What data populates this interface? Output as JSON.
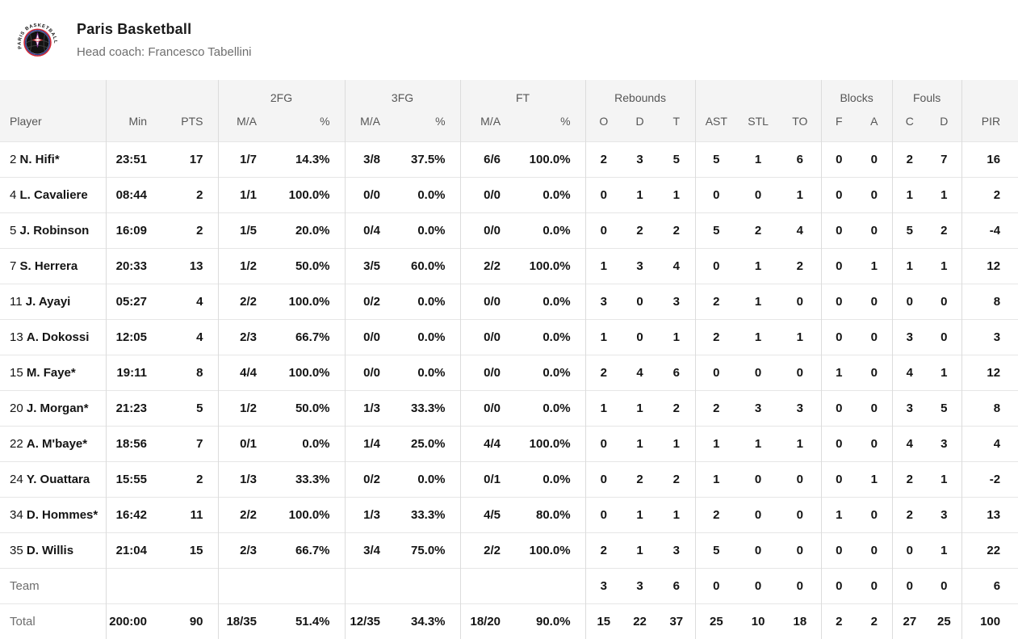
{
  "header": {
    "team_name": "Paris Basketball",
    "coach_line": "Head coach: Francesco Tabellini",
    "logo_text": "PARIS BASKETBALL"
  },
  "colors": {
    "header_bg": "#f4f4f4",
    "header_text": "#565656",
    "body_text": "#141414",
    "muted_text": "#6e6e6e",
    "border": "#dcdcdc",
    "row_border": "#e6e6e6",
    "logo_red": "#d22630",
    "logo_blue": "#2a3b8f",
    "logo_purple": "#7b2d8b",
    "logo_black": "#121212"
  },
  "table": {
    "groups": [
      {
        "label": "",
        "span": 1
      },
      {
        "label": "",
        "span": 2
      },
      {
        "label": "2FG",
        "span": 2
      },
      {
        "label": "3FG",
        "span": 2
      },
      {
        "label": "FT",
        "span": 2
      },
      {
        "label": "Rebounds",
        "span": 3
      },
      {
        "label": "",
        "span": 3
      },
      {
        "label": "Blocks",
        "span": 2
      },
      {
        "label": "Fouls",
        "span": 2
      },
      {
        "label": "",
        "span": 1
      }
    ],
    "columns": [
      "Player",
      "Min",
      "PTS",
      "M/A",
      "%",
      "M/A",
      "%",
      "M/A",
      "%",
      "O",
      "D",
      "T",
      "AST",
      "STL",
      "TO",
      "F",
      "A",
      "C",
      "D",
      "PIR"
    ],
    "players": [
      {
        "num": "2",
        "name": "N. Hifi*",
        "min": "23:51",
        "pts": "17",
        "fg2": "1/7",
        "fg2p": "14.3%",
        "fg3": "3/8",
        "fg3p": "37.5%",
        "ft": "6/6",
        "ftp": "100.0%",
        "o": "2",
        "d": "3",
        "t": "5",
        "ast": "5",
        "stl": "1",
        "to": "6",
        "bf": "0",
        "ba": "0",
        "fc": "2",
        "fd": "7",
        "pir": "16"
      },
      {
        "num": "4",
        "name": "L. Cavaliere",
        "min": "08:44",
        "pts": "2",
        "fg2": "1/1",
        "fg2p": "100.0%",
        "fg3": "0/0",
        "fg3p": "0.0%",
        "ft": "0/0",
        "ftp": "0.0%",
        "o": "0",
        "d": "1",
        "t": "1",
        "ast": "0",
        "stl": "0",
        "to": "1",
        "bf": "0",
        "ba": "0",
        "fc": "1",
        "fd": "1",
        "pir": "2"
      },
      {
        "num": "5",
        "name": "J. Robinson",
        "min": "16:09",
        "pts": "2",
        "fg2": "1/5",
        "fg2p": "20.0%",
        "fg3": "0/4",
        "fg3p": "0.0%",
        "ft": "0/0",
        "ftp": "0.0%",
        "o": "0",
        "d": "2",
        "t": "2",
        "ast": "5",
        "stl": "2",
        "to": "4",
        "bf": "0",
        "ba": "0",
        "fc": "5",
        "fd": "2",
        "pir": "-4"
      },
      {
        "num": "7",
        "name": "S. Herrera",
        "min": "20:33",
        "pts": "13",
        "fg2": "1/2",
        "fg2p": "50.0%",
        "fg3": "3/5",
        "fg3p": "60.0%",
        "ft": "2/2",
        "ftp": "100.0%",
        "o": "1",
        "d": "3",
        "t": "4",
        "ast": "0",
        "stl": "1",
        "to": "2",
        "bf": "0",
        "ba": "1",
        "fc": "1",
        "fd": "1",
        "pir": "12"
      },
      {
        "num": "11",
        "name": "J. Ayayi",
        "min": "05:27",
        "pts": "4",
        "fg2": "2/2",
        "fg2p": "100.0%",
        "fg3": "0/2",
        "fg3p": "0.0%",
        "ft": "0/0",
        "ftp": "0.0%",
        "o": "3",
        "d": "0",
        "t": "3",
        "ast": "2",
        "stl": "1",
        "to": "0",
        "bf": "0",
        "ba": "0",
        "fc": "0",
        "fd": "0",
        "pir": "8"
      },
      {
        "num": "13",
        "name": "A. Dokossi",
        "min": "12:05",
        "pts": "4",
        "fg2": "2/3",
        "fg2p": "66.7%",
        "fg3": "0/0",
        "fg3p": "0.0%",
        "ft": "0/0",
        "ftp": "0.0%",
        "o": "1",
        "d": "0",
        "t": "1",
        "ast": "2",
        "stl": "1",
        "to": "1",
        "bf": "0",
        "ba": "0",
        "fc": "3",
        "fd": "0",
        "pir": "3"
      },
      {
        "num": "15",
        "name": "M. Faye*",
        "min": "19:11",
        "pts": "8",
        "fg2": "4/4",
        "fg2p": "100.0%",
        "fg3": "0/0",
        "fg3p": "0.0%",
        "ft": "0/0",
        "ftp": "0.0%",
        "o": "2",
        "d": "4",
        "t": "6",
        "ast": "0",
        "stl": "0",
        "to": "0",
        "bf": "1",
        "ba": "0",
        "fc": "4",
        "fd": "1",
        "pir": "12"
      },
      {
        "num": "20",
        "name": "J. Morgan*",
        "min": "21:23",
        "pts": "5",
        "fg2": "1/2",
        "fg2p": "50.0%",
        "fg3": "1/3",
        "fg3p": "33.3%",
        "ft": "0/0",
        "ftp": "0.0%",
        "o": "1",
        "d": "1",
        "t": "2",
        "ast": "2",
        "stl": "3",
        "to": "3",
        "bf": "0",
        "ba": "0",
        "fc": "3",
        "fd": "5",
        "pir": "8"
      },
      {
        "num": "22",
        "name": "A. M'baye*",
        "min": "18:56",
        "pts": "7",
        "fg2": "0/1",
        "fg2p": "0.0%",
        "fg3": "1/4",
        "fg3p": "25.0%",
        "ft": "4/4",
        "ftp": "100.0%",
        "o": "0",
        "d": "1",
        "t": "1",
        "ast": "1",
        "stl": "1",
        "to": "1",
        "bf": "0",
        "ba": "0",
        "fc": "4",
        "fd": "3",
        "pir": "4"
      },
      {
        "num": "24",
        "name": "Y. Ouattara",
        "min": "15:55",
        "pts": "2",
        "fg2": "1/3",
        "fg2p": "33.3%",
        "fg3": "0/2",
        "fg3p": "0.0%",
        "ft": "0/1",
        "ftp": "0.0%",
        "o": "0",
        "d": "2",
        "t": "2",
        "ast": "1",
        "stl": "0",
        "to": "0",
        "bf": "0",
        "ba": "1",
        "fc": "2",
        "fd": "1",
        "pir": "-2"
      },
      {
        "num": "34",
        "name": "D. Hommes*",
        "min": "16:42",
        "pts": "11",
        "fg2": "2/2",
        "fg2p": "100.0%",
        "fg3": "1/3",
        "fg3p": "33.3%",
        "ft": "4/5",
        "ftp": "80.0%",
        "o": "0",
        "d": "1",
        "t": "1",
        "ast": "2",
        "stl": "0",
        "to": "0",
        "bf": "1",
        "ba": "0",
        "fc": "2",
        "fd": "3",
        "pir": "13"
      },
      {
        "num": "35",
        "name": "D. Willis",
        "min": "21:04",
        "pts": "15",
        "fg2": "2/3",
        "fg2p": "66.7%",
        "fg3": "3/4",
        "fg3p": "75.0%",
        "ft": "2/2",
        "ftp": "100.0%",
        "o": "2",
        "d": "1",
        "t": "3",
        "ast": "5",
        "stl": "0",
        "to": "0",
        "bf": "0",
        "ba": "0",
        "fc": "0",
        "fd": "1",
        "pir": "22"
      }
    ],
    "team_row": {
      "label": "Team",
      "min": "",
      "pts": "",
      "fg2": "",
      "fg2p": "",
      "fg3": "",
      "fg3p": "",
      "ft": "",
      "ftp": "",
      "o": "3",
      "d": "3",
      "t": "6",
      "ast": "0",
      "stl": "0",
      "to": "0",
      "bf": "0",
      "ba": "0",
      "fc": "0",
      "fd": "0",
      "pir": "6"
    },
    "total_row": {
      "label": "Total",
      "min": "200:00",
      "pts": "90",
      "fg2": "18/35",
      "fg2p": "51.4%",
      "fg3": "12/35",
      "fg3p": "34.3%",
      "ft": "18/20",
      "ftp": "90.0%",
      "o": "15",
      "d": "22",
      "t": "37",
      "ast": "25",
      "stl": "10",
      "to": "18",
      "bf": "2",
      "ba": "2",
      "fc": "27",
      "fd": "25",
      "pir": "100"
    }
  }
}
